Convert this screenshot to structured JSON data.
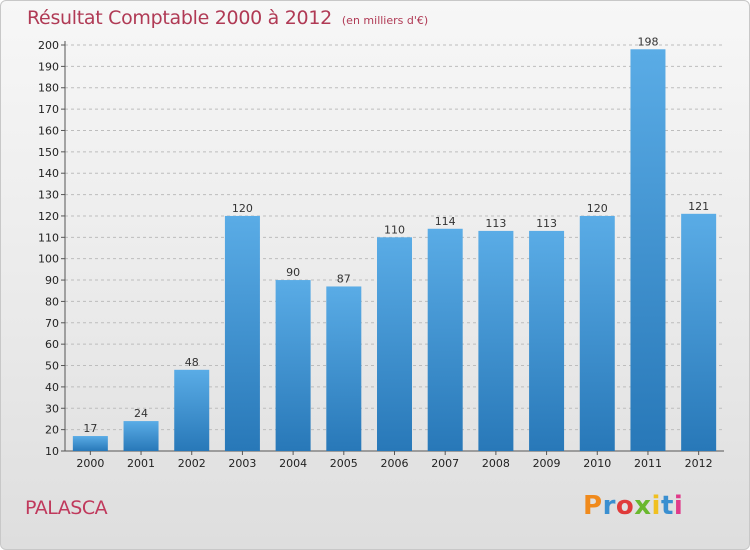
{
  "chart_data": {
    "type": "bar",
    "title": "Résultat Comptable 2000 à 2012",
    "subtitle": "(en milliers d'€)",
    "categories": [
      "2000",
      "2001",
      "2002",
      "2003",
      "2004",
      "2005",
      "2006",
      "2007",
      "2008",
      "2009",
      "2010",
      "2011",
      "2012"
    ],
    "values": [
      17,
      24,
      48,
      120,
      90,
      87,
      110,
      114,
      113,
      113,
      120,
      198,
      121
    ],
    "value_labels": [
      "17",
      "24",
      "48",
      "120",
      "90",
      "87",
      "110",
      "114",
      "113",
      "113",
      "120",
      "198",
      "121"
    ],
    "ylim": [
      10,
      200
    ],
    "yticks": [
      10,
      20,
      30,
      40,
      50,
      60,
      70,
      80,
      90,
      100,
      110,
      120,
      130,
      140,
      150,
      160,
      170,
      180,
      190,
      200
    ],
    "xlabel": "",
    "ylabel": "",
    "grid": true,
    "colors": {
      "bar_top": "#5aace6",
      "bar_bottom": "#2878b8",
      "title": "#b03a55"
    }
  },
  "footer": {
    "place": "PALASCA",
    "logo": "Proxiti",
    "logo_colors": [
      "#f08a1c",
      "#3a8fd0",
      "#e03a3a",
      "#6ab82e",
      "#f0c020",
      "#3a8fd0",
      "#e03a8a"
    ]
  }
}
